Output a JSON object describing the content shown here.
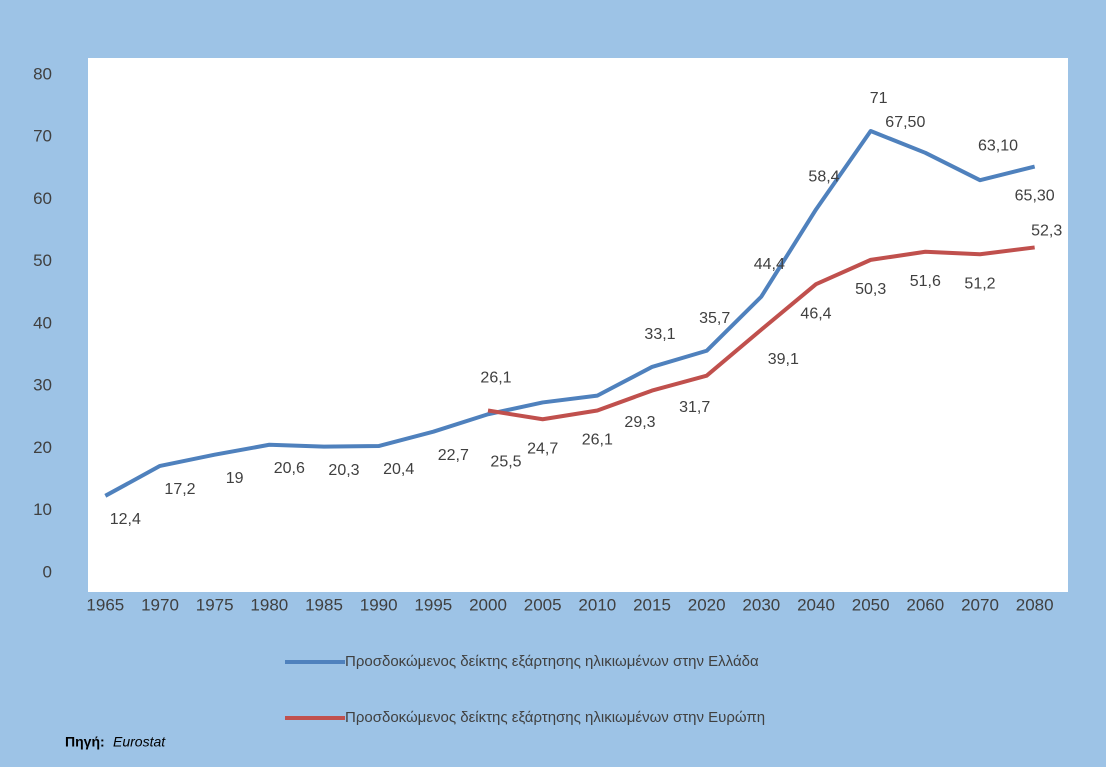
{
  "chart_data": {
    "type": "line",
    "categories": [
      "1965",
      "1970",
      "1975",
      "1980",
      "1985",
      "1990",
      "1995",
      "2000",
      "2005",
      "2010",
      "2015",
      "2020",
      "2030",
      "2040",
      "2050",
      "2060",
      "2070",
      "2080"
    ],
    "series": [
      {
        "name": "Προσδοκώμενος δείκτης  εξάρτησης ηλικιωμένων στην Ελλάδα",
        "color": "#4f81bd",
        "values": [
          12.4,
          17.2,
          19,
          20.6,
          20.3,
          20.4,
          22.7,
          25.5,
          27.4,
          28.5,
          33.1,
          35.7,
          44.4,
          58.4,
          71,
          67.5,
          63.1,
          65.3
        ],
        "value_labels": [
          "12,4",
          "17,2",
          "19",
          "20,6",
          "20,3",
          "20,4",
          "22,7",
          "25,5",
          null,
          null,
          "33,1",
          "35,7",
          "44,4",
          "58,4",
          "71",
          "67,50",
          "63,10",
          "65,30"
        ]
      },
      {
        "name": "Προσδοκώμενος δείκτης εξάρτησης ηλικιωμένων στην Ευρώπη",
        "color": "#c0504d",
        "values": [
          null,
          null,
          null,
          null,
          null,
          null,
          null,
          26.1,
          24.7,
          26.1,
          29.3,
          31.7,
          39.1,
          46.4,
          50.3,
          51.6,
          51.2,
          52.3
        ],
        "value_labels": [
          null,
          null,
          null,
          null,
          null,
          null,
          null,
          "26,1",
          "24,7",
          "26,1",
          "29,3",
          "31,7",
          "39,1",
          "46,4",
          "50,3",
          "51,6",
          "51,2",
          "52,3"
        ]
      }
    ],
    "ylim": [
      0,
      80
    ],
    "yticks": [
      0,
      10,
      20,
      30,
      40,
      50,
      60,
      70,
      80
    ],
    "grid": false,
    "legend": "bottom",
    "source_label": "Πηγή:",
    "source": "Eurostat"
  }
}
